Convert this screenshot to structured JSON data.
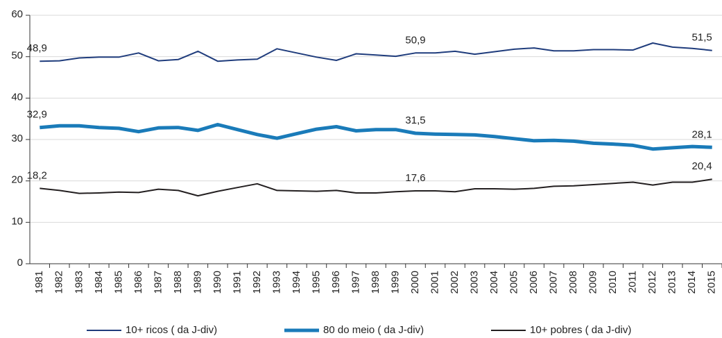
{
  "chart_data": {
    "type": "line",
    "categories": [
      "1981",
      "1982",
      "1983",
      "1984",
      "1985",
      "1986",
      "1987",
      "1988",
      "1989",
      "1990",
      "1991",
      "1992",
      "1993",
      "1994",
      "1995",
      "1996",
      "1997",
      "1998",
      "1999",
      "2000",
      "2001",
      "2002",
      "2003",
      "2004",
      "2005",
      "2006",
      "2007",
      "2008",
      "2009",
      "2010",
      "2011",
      "2012",
      "2013",
      "2014",
      "2015"
    ],
    "ylim": [
      0,
      60
    ],
    "yticks": [
      0,
      10,
      20,
      30,
      40,
      50,
      60
    ],
    "grid": true,
    "legend": "bottom",
    "series": [
      {
        "name": "10+ ricos ( da J-div)",
        "color": "#1f3c7c",
        "width": 2,
        "values": [
          48.9,
          49.0,
          49.7,
          49.9,
          49.9,
          50.9,
          49.0,
          49.3,
          51.3,
          48.9,
          49.2,
          49.4,
          51.9,
          50.9,
          49.9,
          49.1,
          50.7,
          50.4,
          50.1,
          50.9,
          50.9,
          51.3,
          50.6,
          51.2,
          51.8,
          52.1,
          51.4,
          51.4,
          51.7,
          51.7,
          51.6,
          53.3,
          52.3,
          52.0,
          51.5
        ],
        "value_labels": [
          "48,9",
          null,
          null,
          null,
          null,
          null,
          null,
          null,
          null,
          null,
          null,
          null,
          null,
          null,
          null,
          null,
          null,
          null,
          null,
          "50,9",
          null,
          null,
          null,
          null,
          null,
          null,
          null,
          null,
          null,
          null,
          null,
          null,
          null,
          null,
          "51,5"
        ]
      },
      {
        "name": "80 do meio ( da J-div)",
        "color": "#1a7bb9",
        "width": 5,
        "values": [
          32.9,
          33.3,
          33.3,
          32.9,
          32.7,
          31.9,
          32.8,
          32.9,
          32.2,
          33.6,
          32.4,
          31.2,
          30.3,
          31.4,
          32.5,
          33.1,
          32.1,
          32.4,
          32.4,
          31.5,
          31.3,
          31.2,
          31.1,
          30.7,
          30.2,
          29.7,
          29.8,
          29.6,
          29.1,
          28.9,
          28.6,
          27.7,
          28.0,
          28.3,
          28.1
        ],
        "value_labels": [
          "32,9",
          null,
          null,
          null,
          null,
          null,
          null,
          null,
          null,
          null,
          null,
          null,
          null,
          null,
          null,
          null,
          null,
          null,
          null,
          "31,5",
          null,
          null,
          null,
          null,
          null,
          null,
          null,
          null,
          null,
          null,
          null,
          null,
          null,
          null,
          "28,1"
        ]
      },
      {
        "name": "10+ pobres ( da J-div)",
        "color": "#231f20",
        "width": 2,
        "values": [
          18.2,
          17.7,
          17.0,
          17.1,
          17.3,
          17.2,
          18.0,
          17.7,
          16.4,
          17.5,
          18.4,
          19.3,
          17.7,
          17.6,
          17.5,
          17.7,
          17.1,
          17.1,
          17.4,
          17.6,
          17.6,
          17.4,
          18.1,
          18.1,
          18.0,
          18.2,
          18.7,
          18.8,
          19.1,
          19.4,
          19.7,
          19.0,
          19.7,
          19.7,
          20.4
        ],
        "value_labels": [
          "18,2",
          null,
          null,
          null,
          null,
          null,
          null,
          null,
          null,
          null,
          null,
          null,
          null,
          null,
          null,
          null,
          null,
          null,
          null,
          "17,6",
          null,
          null,
          null,
          null,
          null,
          null,
          null,
          null,
          null,
          null,
          null,
          null,
          null,
          null,
          "20,4"
        ]
      }
    ]
  }
}
